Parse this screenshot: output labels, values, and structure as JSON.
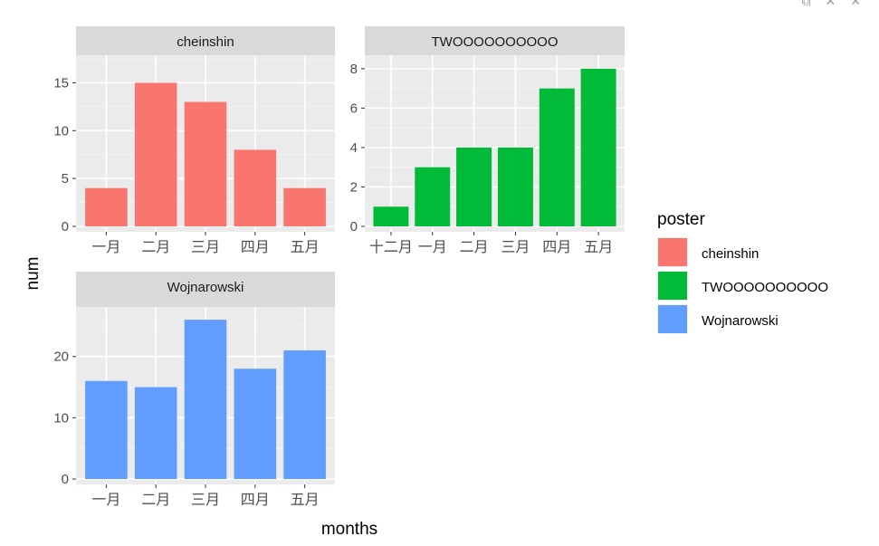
{
  "window_controls": [
    "⧉",
    "✕",
    "✕"
  ],
  "chart_data": [
    {
      "type": "bar",
      "title": "cheinshin",
      "categories": [
        "一月",
        "二月",
        "三月",
        "四月",
        "五月"
      ],
      "values": [
        4,
        15,
        13,
        8,
        4
      ],
      "color": "#F8766D",
      "ylim": [
        0,
        17.5
      ],
      "yticks": [
        0,
        5,
        10,
        15
      ]
    },
    {
      "type": "bar",
      "title": "TWOOOOOOOOOO",
      "categories": [
        "十二月",
        "一月",
        "二月",
        "三月",
        "四月",
        "五月"
      ],
      "values": [
        1,
        3,
        4,
        4,
        7,
        8
      ],
      "color": "#00BA38",
      "ylim": [
        0,
        8.5
      ],
      "yticks": [
        0,
        2,
        4,
        6,
        8
      ]
    },
    {
      "type": "bar",
      "title": "Wojnarowski",
      "categories": [
        "一月",
        "二月",
        "三月",
        "四月",
        "五月"
      ],
      "values": [
        16,
        15,
        26,
        18,
        21
      ],
      "color": "#619CFF",
      "ylim": [
        0,
        27.5
      ],
      "yticks": [
        0,
        10,
        20
      ]
    }
  ],
  "axes": {
    "xlabel": "months",
    "ylabel": "num"
  },
  "legend": {
    "title": "poster",
    "entries": [
      {
        "label": "cheinshin",
        "color": "#F8766D"
      },
      {
        "label": "TWOOOOOOOOOO",
        "color": "#00BA38"
      },
      {
        "label": "Wojnarowski",
        "color": "#619CFF"
      }
    ]
  }
}
